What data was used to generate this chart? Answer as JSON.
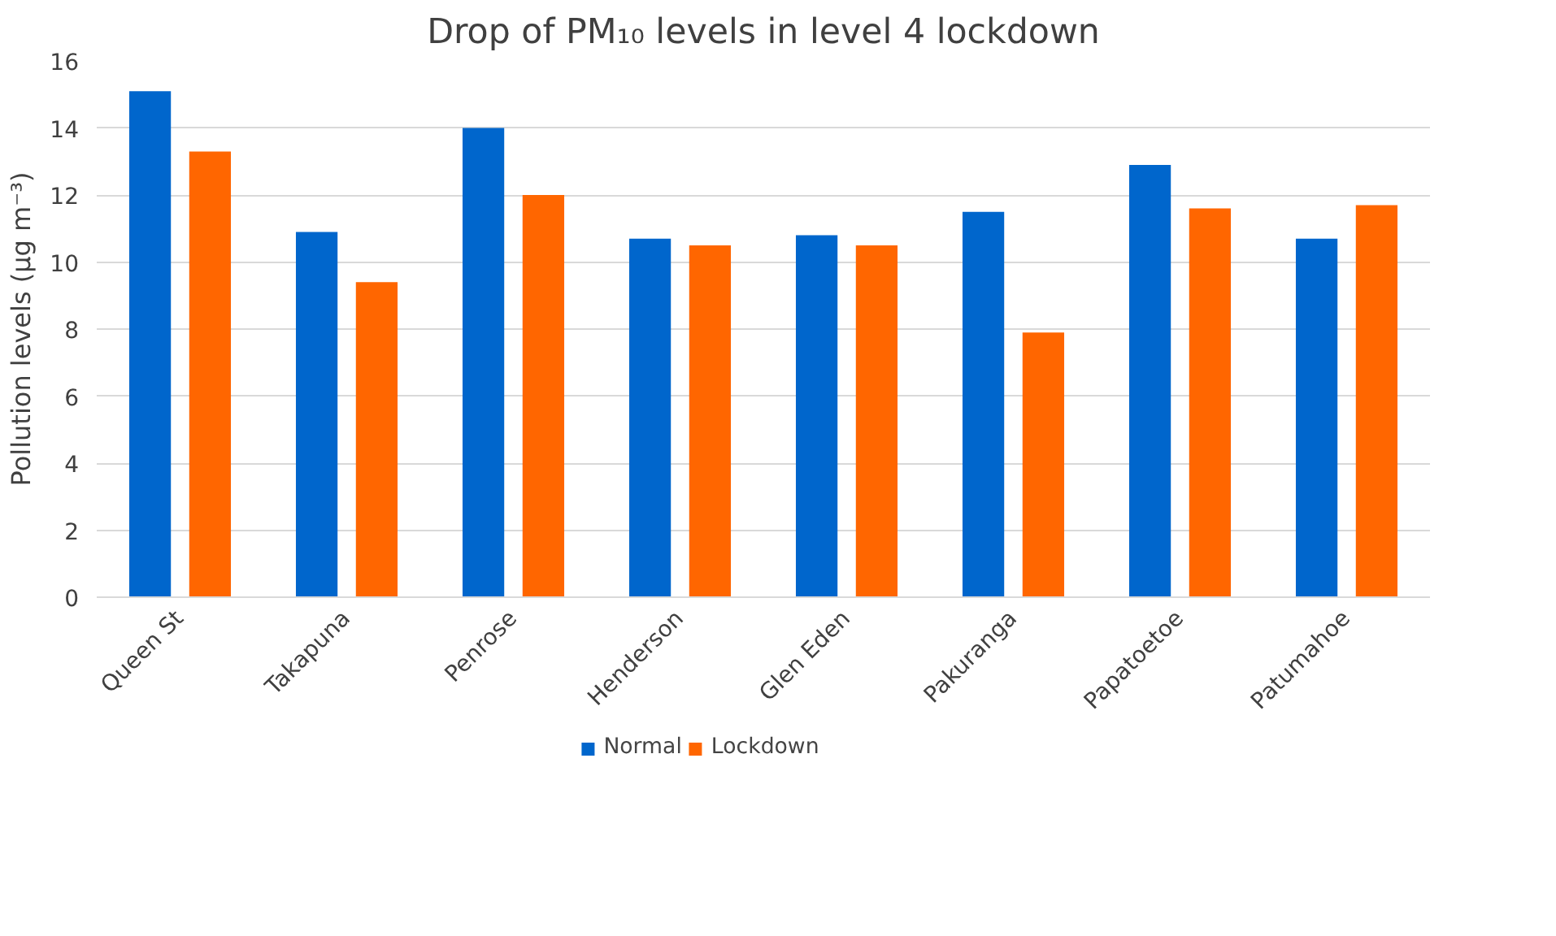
{
  "chart_data": {
    "type": "bar",
    "title": "Drop of PM₁₀ levels in level 4 lockdown",
    "ylabel": "Pollution levels (µg m⁻³)",
    "categories": [
      "Queen St",
      "Takapuna",
      "Penrose",
      "Henderson",
      "Glen Eden",
      "Pakuranga",
      "Papatoetoe",
      "Patumahoe"
    ],
    "series": [
      {
        "name": "Normal",
        "color": "#0066cc",
        "values": [
          15.1,
          10.9,
          14.0,
          10.7,
          10.8,
          11.5,
          12.9,
          10.7
        ]
      },
      {
        "name": "Lockdown",
        "color": "#ff6600",
        "values": [
          13.3,
          9.4,
          12.0,
          10.5,
          10.5,
          7.9,
          11.6,
          11.7
        ]
      }
    ],
    "ylim": [
      0,
      16
    ],
    "yticks": [
      0,
      2,
      4,
      6,
      8,
      10,
      12,
      14,
      16
    ],
    "grid": "y",
    "legend": "bottom"
  }
}
